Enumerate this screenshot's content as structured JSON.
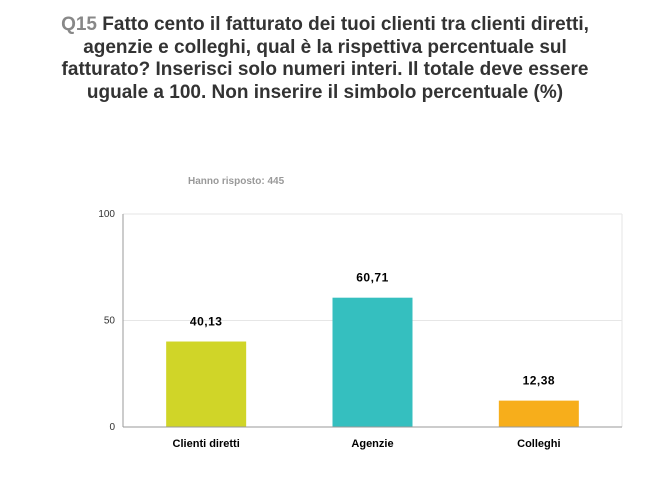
{
  "header": {
    "question_number": "Q15",
    "question_text": "Fatto cento il fatturato dei tuoi clienti tra clienti diretti, agenzie e colleghi, qual è la rispettiva percentuale sul fatturato? Inserisci solo numeri interi. Il totale deve essere uguale a 100. Non inserire il simbolo percentuale (%)",
    "responses": "Hanno risposto: 445"
  },
  "chart_data": {
    "type": "bar",
    "categories": [
      "Clienti diretti",
      "Agenzie",
      "Colleghi"
    ],
    "values": [
      40.13,
      60.71,
      12.38
    ],
    "data_labels": [
      "40,13",
      "60,71",
      "12,38"
    ],
    "colors": [
      "#d0d528",
      "#35bfbf",
      "#f7ae1b"
    ],
    "ylim": [
      0,
      100
    ],
    "yticks": [
      0,
      50,
      100
    ],
    "grid": true
  }
}
